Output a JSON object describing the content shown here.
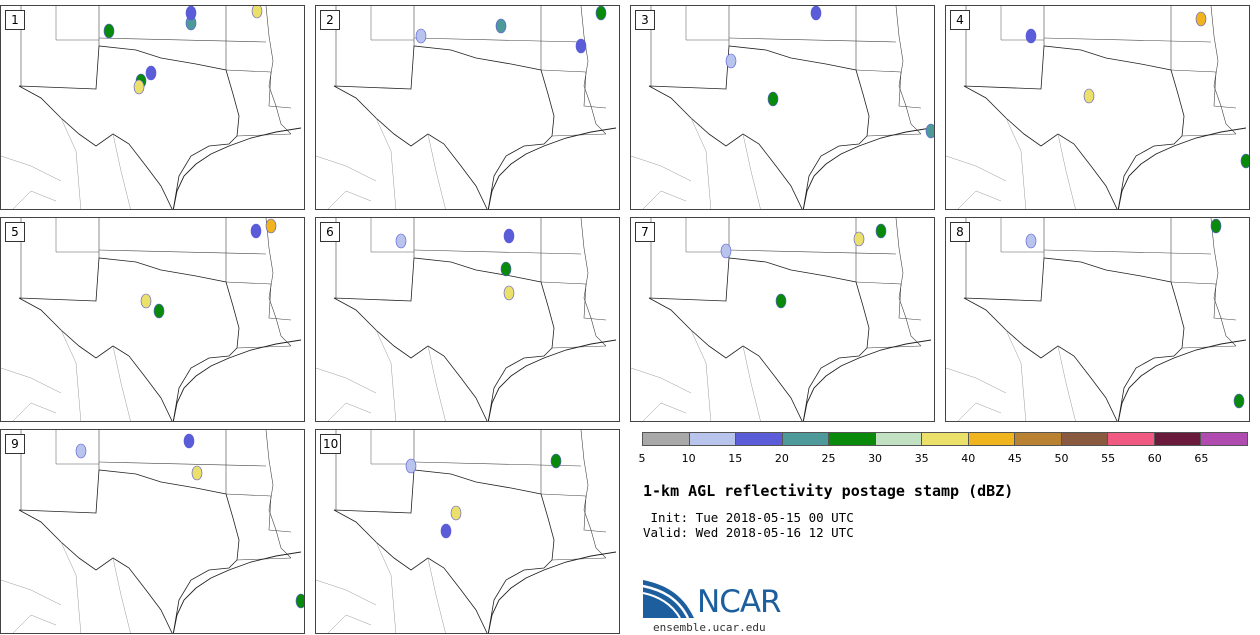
{
  "panels": [
    {
      "label": "1"
    },
    {
      "label": "2"
    },
    {
      "label": "3"
    },
    {
      "label": "4"
    },
    {
      "label": "5"
    },
    {
      "label": "6"
    },
    {
      "label": "7"
    },
    {
      "label": "8"
    },
    {
      "label": "9"
    },
    {
      "label": "10"
    }
  ],
  "colorbar": {
    "colors": [
      "#a8a8a8",
      "#b8c4ec",
      "#5a5cd8",
      "#4e9a9a",
      "#0a8a0a",
      "#c2e0c2",
      "#ebe06a",
      "#f0b41e",
      "#b88232",
      "#8a5a40",
      "#f05a82",
      "#6a1a3a",
      "#b04cb0"
    ],
    "ticks": [
      "5",
      "10",
      "15",
      "20",
      "25",
      "30",
      "35",
      "40",
      "45",
      "50",
      "55",
      "60",
      "65"
    ]
  },
  "title": "1-km AGL reflectivity postage stamp (dBZ)",
  "init": " Init: Tue 2018-05-15 00 UTC",
  "valid": "Valid: Wed 2018-05-16 12 UTC",
  "logo": {
    "text": "NCAR",
    "url": "ensemble.ucar.edu"
  }
}
